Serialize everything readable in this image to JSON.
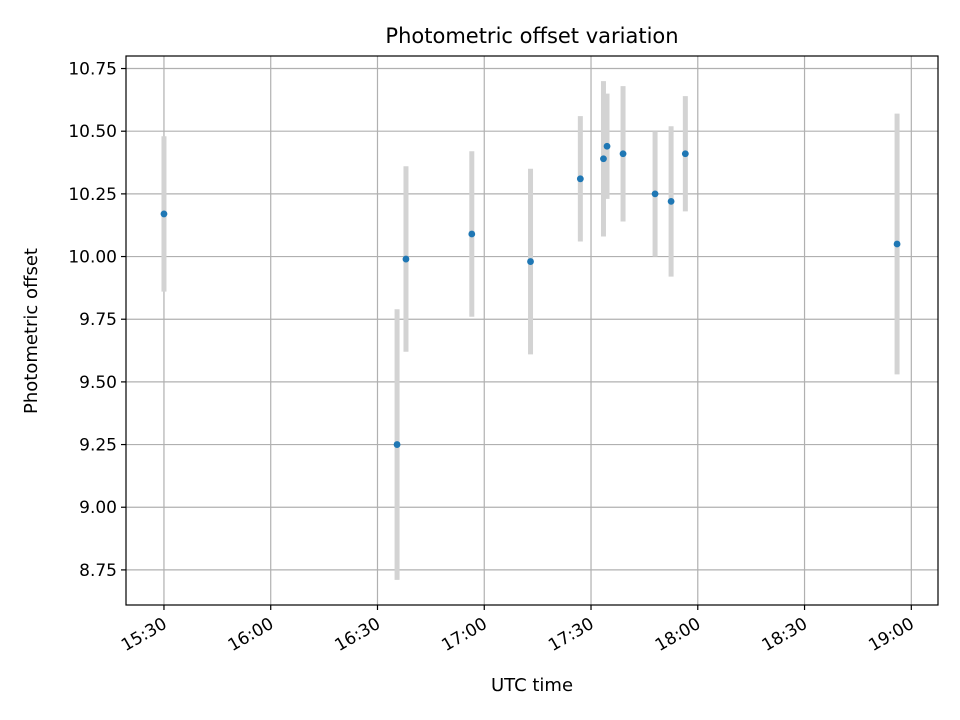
{
  "chart_data": {
    "type": "scatter",
    "title": "Photometric offset variation",
    "xlabel": "UTC time",
    "ylabel": "Photometric offset",
    "x_ticks": [
      "15:30",
      "16:00",
      "16:30",
      "17:00",
      "17:30",
      "18:00",
      "18:30",
      "19:00"
    ],
    "y_ticks": [
      "8.75",
      "9.00",
      "9.25",
      "9.50",
      "9.75",
      "10.00",
      "10.25",
      "10.50",
      "10.75"
    ],
    "xlim": [
      "15:19:20",
      "19:07:30"
    ],
    "ylim": [
      8.61,
      10.8
    ],
    "grid": true,
    "point_color": "#1f77b4",
    "errorbar_color": "#d3d3d3",
    "points": [
      {
        "x": "15:30:00",
        "y": 10.17,
        "err": 0.31
      },
      {
        "x": "16:35:30",
        "y": 9.25,
        "err": 0.54
      },
      {
        "x": "16:38:00",
        "y": 9.99,
        "err": 0.37
      },
      {
        "x": "16:56:30",
        "y": 10.09,
        "err": 0.33
      },
      {
        "x": "17:13:00",
        "y": 9.98,
        "err": 0.37
      },
      {
        "x": "17:27:00",
        "y": 10.31,
        "err": 0.25
      },
      {
        "x": "17:33:30",
        "y": 10.39,
        "err": 0.31
      },
      {
        "x": "17:34:30",
        "y": 10.44,
        "err": 0.21
      },
      {
        "x": "17:39:00",
        "y": 10.41,
        "err": 0.27
      },
      {
        "x": "17:48:00",
        "y": 10.25,
        "err": 0.25
      },
      {
        "x": "17:52:30",
        "y": 10.22,
        "err": 0.3
      },
      {
        "x": "17:56:30",
        "y": 10.41,
        "err": 0.23
      },
      {
        "x": "18:56:00",
        "y": 10.05,
        "err": 0.52
      }
    ]
  }
}
